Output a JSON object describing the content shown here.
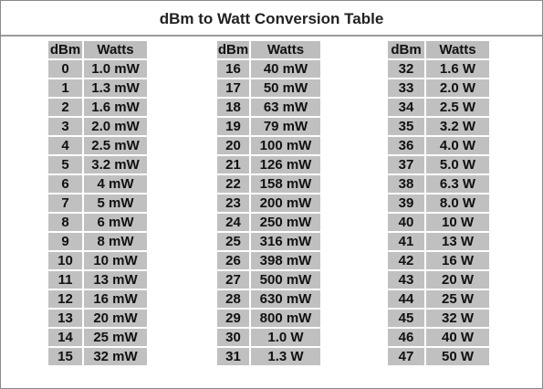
{
  "title": "dBm to Watt Conversion Table",
  "tables": [
    {
      "header": [
        "dBm",
        "Watts"
      ],
      "rows": [
        [
          "0",
          "1.0 mW"
        ],
        [
          "1",
          "1.3 mW"
        ],
        [
          "2",
          "1.6 mW"
        ],
        [
          "3",
          "2.0 mW"
        ],
        [
          "4",
          "2.5 mW"
        ],
        [
          "5",
          "3.2 mW"
        ],
        [
          "6",
          "4 mW"
        ],
        [
          "7",
          "5 mW"
        ],
        [
          "8",
          "6 mW"
        ],
        [
          "9",
          "8 mW"
        ],
        [
          "10",
          "10 mW"
        ],
        [
          "11",
          "13 mW"
        ],
        [
          "12",
          "16 mW"
        ],
        [
          "13",
          "20 mW"
        ],
        [
          "14",
          "25 mW"
        ],
        [
          "15",
          "32 mW"
        ]
      ]
    },
    {
      "header": [
        "dBm",
        "Watts"
      ],
      "rows": [
        [
          "16",
          "40 mW"
        ],
        [
          "17",
          "50 mW"
        ],
        [
          "18",
          "63 mW"
        ],
        [
          "19",
          "79 mW"
        ],
        [
          "20",
          "100 mW"
        ],
        [
          "21",
          "126 mW"
        ],
        [
          "22",
          "158 mW"
        ],
        [
          "23",
          "200 mW"
        ],
        [
          "24",
          "250 mW"
        ],
        [
          "25",
          "316 mW"
        ],
        [
          "26",
          "398 mW"
        ],
        [
          "27",
          "500 mW"
        ],
        [
          "28",
          "630 mW"
        ],
        [
          "29",
          "800 mW"
        ],
        [
          "30",
          "1.0 W"
        ],
        [
          "31",
          "1.3 W"
        ]
      ]
    },
    {
      "header": [
        "dBm",
        "Watts"
      ],
      "rows": [
        [
          "32",
          "1.6 W"
        ],
        [
          "33",
          "2.0 W"
        ],
        [
          "34",
          "2.5 W"
        ],
        [
          "35",
          "3.2 W"
        ],
        [
          "36",
          "4.0 W"
        ],
        [
          "37",
          "5.0 W"
        ],
        [
          "38",
          "6.3 W"
        ],
        [
          "39",
          "8.0 W"
        ],
        [
          "40",
          "10 W"
        ],
        [
          "41",
          "13 W"
        ],
        [
          "42",
          "16 W"
        ],
        [
          "43",
          "20 W"
        ],
        [
          "44",
          "25 W"
        ],
        [
          "45",
          "32 W"
        ],
        [
          "46",
          "40 W"
        ],
        [
          "47",
          "50 W"
        ]
      ]
    }
  ]
}
